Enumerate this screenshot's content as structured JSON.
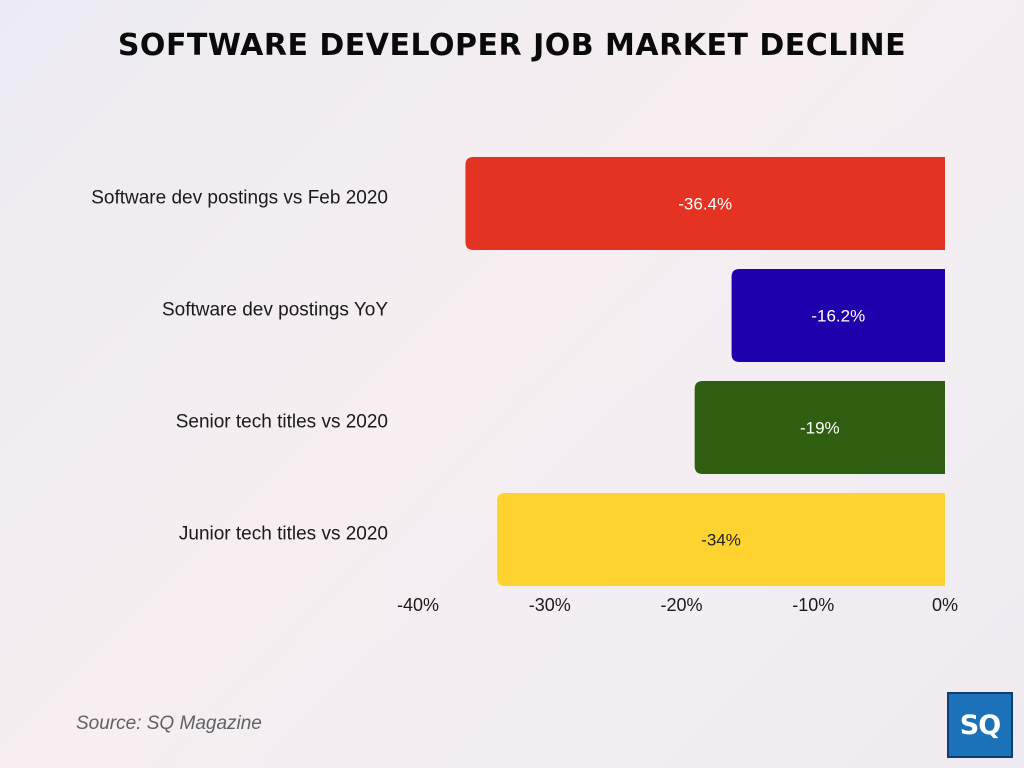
{
  "chart_data": {
    "type": "bar",
    "orientation": "horizontal",
    "title": "SOFTWARE DEVELOPER JOB MARKET DECLINE",
    "categories": [
      "Software dev postings vs Feb 2020",
      "Software dev postings YoY",
      "Senior tech titles vs 2020",
      "Junior tech titles vs 2020"
    ],
    "values": [
      -36.4,
      -16.2,
      -19,
      -34
    ],
    "data_labels": [
      "-36.4%",
      "-16.2%",
      "-19%",
      "-34%"
    ],
    "colors": [
      "#e53323",
      "#1f00ad",
      "#2f5e10",
      "#ffd32f"
    ],
    "label_colors": [
      "#ffffff",
      "#ffffff",
      "#ffffff",
      "#222222"
    ],
    "xlim": [
      -40,
      0
    ],
    "xticks": [
      -40,
      -30,
      -20,
      -10,
      0
    ],
    "xtick_labels": [
      "-40%",
      "-30%",
      "-20%",
      "-10%",
      "0%"
    ],
    "grid": false,
    "legend": "none"
  },
  "source": "Source: SQ Magazine",
  "logo_text": "SQ"
}
